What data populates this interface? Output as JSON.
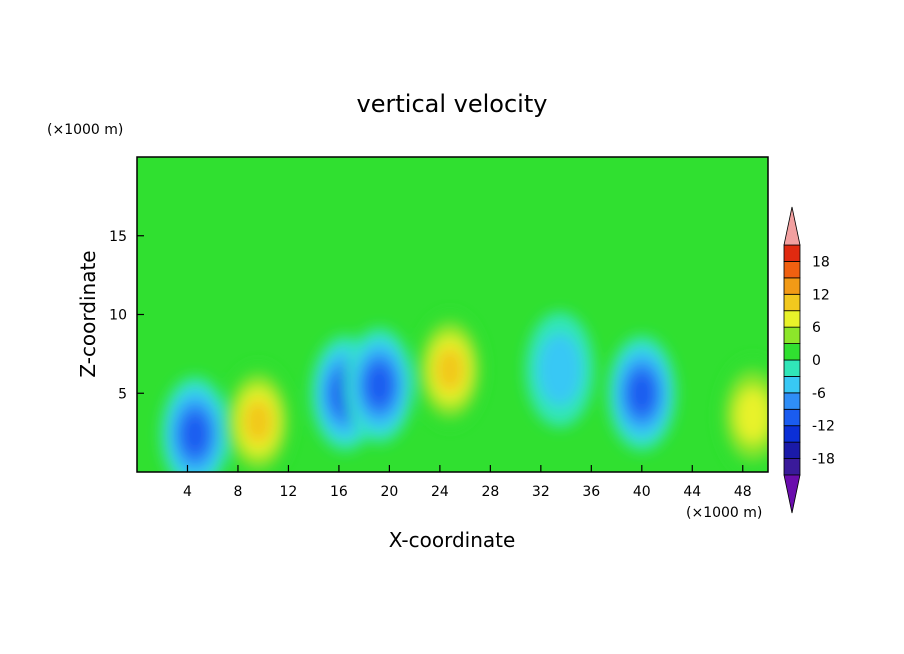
{
  "chart_data": {
    "type": "heatmap",
    "title": "vertical velocity",
    "xlabel": "X-coordinate",
    "ylabel": "Z-coordinate",
    "x_unit": "(×1000 m)",
    "y_unit": "(×1000 m)",
    "xlim": [
      0,
      50
    ],
    "ylim": [
      0,
      20
    ],
    "x_ticks": [
      4,
      8,
      12,
      16,
      20,
      24,
      28,
      32,
      36,
      40,
      44,
      48
    ],
    "y_ticks": [
      5,
      10,
      15
    ],
    "colorbar": {
      "levels": [
        -21,
        -18,
        -15,
        -12,
        -9,
        -6,
        -3,
        0,
        3,
        6,
        9,
        12,
        15,
        18,
        21
      ],
      "tick_labels": [
        -18,
        -12,
        -6,
        0,
        6,
        12,
        18
      ],
      "colors": [
        "#6a0dad",
        "#3a1a9a",
        "#1a1aa8",
        "#0b2fd6",
        "#1a5cf0",
        "#2f8ef7",
        "#38c8f5",
        "#30e6b8",
        "#30e030",
        "#8ce62a",
        "#e8f22a",
        "#f2c81e",
        "#f29a16",
        "#f06010",
        "#e02a10",
        "#f2a0a0"
      ],
      "extend": "both"
    },
    "cells": [
      {
        "x": 4.6,
        "z": 2.4,
        "w": -13
      },
      {
        "x": 9.6,
        "z": 3.2,
        "w": 12
      },
      {
        "x": 16.5,
        "z": 5.0,
        "w": -13
      },
      {
        "x": 19.2,
        "z": 5.5,
        "w": -12
      },
      {
        "x": 24.8,
        "z": 6.5,
        "w": 13
      },
      {
        "x": 33.5,
        "z": 6.5,
        "w": -8
      },
      {
        "x": 40.0,
        "z": 5.0,
        "w": -12
      },
      {
        "x": 48.8,
        "z": 3.6,
        "w": 11
      }
    ]
  }
}
